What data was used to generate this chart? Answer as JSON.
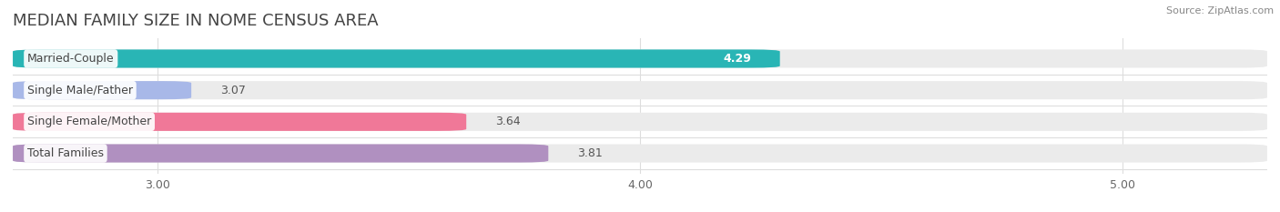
{
  "title": "MEDIAN FAMILY SIZE IN NOME CENSUS AREA",
  "source": "Source: ZipAtlas.com",
  "categories": [
    "Married-Couple",
    "Single Male/Father",
    "Single Female/Mother",
    "Total Families"
  ],
  "values": [
    4.29,
    3.07,
    3.64,
    3.81
  ],
  "bar_colors": [
    "#29b5b5",
    "#a8b8e8",
    "#f07898",
    "#b090c0"
  ],
  "xlim_min": 2.7,
  "xlim_max": 5.3,
  "xticks": [
    3.0,
    4.0,
    5.0
  ],
  "xtick_labels": [
    "3.00",
    "4.00",
    "5.00"
  ],
  "bar_height": 0.58,
  "background_color": "#ffffff",
  "bar_bg_color": "#ebebeb",
  "separator_color": "#dddddd",
  "title_fontsize": 13,
  "label_fontsize": 9,
  "value_fontsize": 9,
  "tick_fontsize": 9,
  "title_color": "#444444",
  "source_color": "#888888",
  "label_text_color": "#444444",
  "value_color_inside": "#ffffff",
  "value_color_outside": "#555555"
}
